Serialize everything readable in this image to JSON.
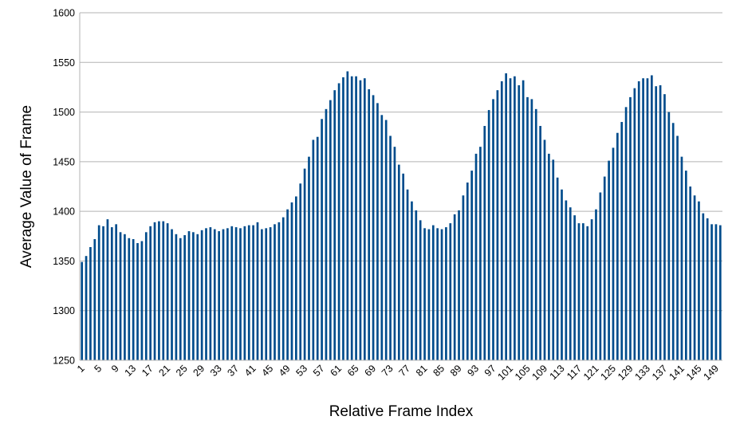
{
  "chart_data": {
    "type": "bar",
    "title": "",
    "xlabel": "Relative Frame Index",
    "ylabel": "Average Value of Frame",
    "ylim": [
      1250,
      1600
    ],
    "yticks": [
      1250,
      1300,
      1350,
      1400,
      1450,
      1500,
      1550,
      1600
    ],
    "x_tick_labels_every": 4,
    "grid": "horizontal",
    "legend": "none",
    "bar_color": "#004c8c",
    "categories": [
      1,
      2,
      3,
      4,
      5,
      6,
      7,
      8,
      9,
      10,
      11,
      12,
      13,
      14,
      15,
      16,
      17,
      18,
      19,
      20,
      21,
      22,
      23,
      24,
      25,
      26,
      27,
      28,
      29,
      30,
      31,
      32,
      33,
      34,
      35,
      36,
      37,
      38,
      39,
      40,
      41,
      42,
      43,
      44,
      45,
      46,
      47,
      48,
      49,
      50,
      51,
      52,
      53,
      54,
      55,
      56,
      57,
      58,
      59,
      60,
      61,
      62,
      63,
      64,
      65,
      66,
      67,
      68,
      69,
      70,
      71,
      72,
      73,
      74,
      75,
      76,
      77,
      78,
      79,
      80,
      81,
      82,
      83,
      84,
      85,
      86,
      87,
      88,
      89,
      90,
      91,
      92,
      93,
      94,
      95,
      96,
      97,
      98,
      99,
      100,
      101,
      102,
      103,
      104,
      105,
      106,
      107,
      108,
      109,
      110,
      111,
      112,
      113,
      114,
      115,
      116,
      117,
      118,
      119,
      120,
      121,
      122,
      123,
      124,
      125,
      126,
      127,
      128,
      129,
      130,
      131,
      132,
      133,
      134,
      135,
      136,
      137,
      138,
      139,
      140,
      141,
      142,
      143,
      144,
      145,
      146,
      147,
      148,
      149,
      150
    ],
    "values": [
      1349,
      1355,
      1364,
      1372,
      1386,
      1385,
      1392,
      1384,
      1387,
      1379,
      1377,
      1373,
      1372,
      1368,
      1370,
      1379,
      1385,
      1389,
      1390,
      1390,
      1388,
      1382,
      1377,
      1373,
      1376,
      1380,
      1379,
      1377,
      1381,
      1383,
      1384,
      1382,
      1380,
      1382,
      1383,
      1385,
      1384,
      1383,
      1385,
      1386,
      1386,
      1389,
      1382,
      1383,
      1384,
      1387,
      1389,
      1394,
      1402,
      1409,
      1415,
      1428,
      1443,
      1455,
      1472,
      1475,
      1493,
      1503,
      1512,
      1522,
      1529,
      1535,
      1541,
      1536,
      1536,
      1532,
      1534,
      1523,
      1517,
      1509,
      1497,
      1492,
      1476,
      1465,
      1447,
      1438,
      1422,
      1410,
      1401,
      1391,
      1383,
      1382,
      1386,
      1383,
      1382,
      1384,
      1388,
      1397,
      1401,
      1416,
      1429,
      1441,
      1458,
      1465,
      1486,
      1502,
      1513,
      1522,
      1531,
      1539,
      1534,
      1536,
      1527,
      1532,
      1515,
      1513,
      1503,
      1486,
      1472,
      1458,
      1452,
      1434,
      1422,
      1411,
      1404,
      1396,
      1388,
      1388,
      1385,
      1392,
      1402,
      1419,
      1435,
      1451,
      1464,
      1479,
      1490,
      1505,
      1515,
      1524,
      1531,
      1534,
      1534,
      1537,
      1526,
      1527,
      1518,
      1500,
      1489,
      1476,
      1455,
      1441,
      1425,
      1416,
      1410,
      1398,
      1393,
      1387,
      1387,
      1386
    ]
  }
}
